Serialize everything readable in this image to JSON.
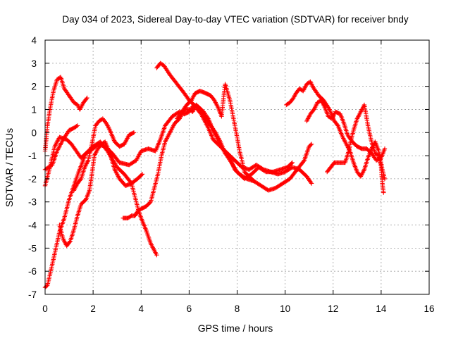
{
  "chart_data": {
    "type": "scatter",
    "title": "Day 034 of 2023, Sidereal Day-to-day VTEC variation (SDTVAR) for receiver bndy",
    "xlabel": "GPS time / hours",
    "ylabel": "SDTVAR / TECUs",
    "xlim": [
      0,
      16
    ],
    "ylim": [
      -7,
      4
    ],
    "xticks": [
      0,
      2,
      4,
      6,
      8,
      10,
      12,
      14,
      16
    ],
    "yticks": [
      -7,
      -6,
      -5,
      -4,
      -3,
      -2,
      -1,
      0,
      1,
      2,
      3,
      4
    ],
    "grid": true,
    "marker": "+",
    "color": "#ff0000",
    "series": [
      {
        "points": [
          [
            0.0,
            -6.7
          ],
          [
            0.1,
            -6.6
          ],
          [
            0.3,
            -5.7
          ],
          [
            0.45,
            -5.0
          ],
          [
            0.6,
            -4.3
          ],
          [
            0.8,
            -3.7
          ],
          [
            1.0,
            -2.9
          ],
          [
            1.2,
            -2.3
          ],
          [
            1.4,
            -1.7
          ],
          [
            1.55,
            -1.3
          ],
          [
            1.7,
            -0.9
          ],
          [
            2.0,
            -0.6
          ],
          [
            2.3,
            -0.4
          ],
          [
            2.6,
            -0.8
          ],
          [
            3.0,
            -1.5
          ],
          [
            3.3,
            -1.8
          ],
          [
            3.6,
            -2.2
          ],
          [
            3.9,
            -3.4
          ],
          [
            4.0,
            -3.7
          ],
          [
            4.2,
            -4.2
          ],
          [
            4.4,
            -4.8
          ],
          [
            4.65,
            -5.3
          ]
        ]
      },
      {
        "points": [
          [
            0.0,
            -0.8
          ],
          [
            0.1,
            0.3
          ],
          [
            0.2,
            1.0
          ],
          [
            0.35,
            1.8
          ],
          [
            0.5,
            2.3
          ],
          [
            0.65,
            2.4
          ],
          [
            0.8,
            1.9
          ],
          [
            1.0,
            1.6
          ],
          [
            1.2,
            1.3
          ],
          [
            1.35,
            1.2
          ],
          [
            1.45,
            1.0
          ],
          [
            1.6,
            1.3
          ],
          [
            1.75,
            1.5
          ]
        ]
      },
      {
        "points": [
          [
            0.0,
            -1.6
          ],
          [
            0.3,
            -1.4
          ],
          [
            0.5,
            -0.8
          ],
          [
            0.75,
            -0.3
          ],
          [
            1.0,
            0.1
          ],
          [
            1.2,
            0.2
          ],
          [
            1.35,
            0.3
          ]
        ]
      },
      {
        "points": [
          [
            0.0,
            -2.3
          ],
          [
            0.2,
            -1.5
          ],
          [
            0.4,
            -0.6
          ],
          [
            0.6,
            -0.2
          ],
          [
            0.9,
            -0.3
          ],
          [
            1.1,
            -0.5
          ],
          [
            1.3,
            -0.8
          ],
          [
            1.5,
            -1.1
          ],
          [
            1.7,
            -0.9
          ],
          [
            2.0,
            -0.7
          ],
          [
            2.2,
            -0.5
          ],
          [
            2.5,
            -0.6
          ],
          [
            2.8,
            -0.9
          ],
          [
            3.1,
            -1.3
          ],
          [
            3.5,
            -1.4
          ],
          [
            3.8,
            -1.2
          ],
          [
            4.0,
            -0.8
          ],
          [
            4.3,
            -0.7
          ],
          [
            4.6,
            -0.8
          ],
          [
            4.8,
            -0.3
          ],
          [
            5.0,
            0.3
          ],
          [
            5.3,
            0.7
          ],
          [
            5.6,
            0.9
          ],
          [
            5.8,
            0.8
          ],
          [
            6.0,
            0.9
          ],
          [
            6.2,
            1.2
          ],
          [
            6.5,
            0.8
          ],
          [
            6.8,
            0.2
          ],
          [
            7.0,
            -0.3
          ],
          [
            7.3,
            -0.6
          ],
          [
            7.6,
            -0.9
          ],
          [
            7.9,
            -1.2
          ],
          [
            8.2,
            -1.5
          ],
          [
            8.5,
            -1.6
          ],
          [
            8.8,
            -1.4
          ],
          [
            9.1,
            -1.6
          ],
          [
            9.4,
            -1.7
          ],
          [
            9.7,
            -1.8
          ],
          [
            10.0,
            -1.7
          ],
          [
            10.3,
            -1.5
          ],
          [
            10.6,
            -1.6
          ],
          [
            10.9,
            -1.9
          ],
          [
            11.1,
            -2.2
          ]
        ]
      },
      {
        "points": [
          [
            0.6,
            -4.0
          ],
          [
            0.75,
            -4.6
          ],
          [
            0.9,
            -4.9
          ],
          [
            1.05,
            -4.7
          ],
          [
            1.2,
            -4.2
          ],
          [
            1.35,
            -3.6
          ],
          [
            1.5,
            -3.1
          ],
          [
            1.7,
            -2.9
          ],
          [
            1.85,
            -2.5
          ],
          [
            1.95,
            -1.8
          ],
          [
            2.05,
            -1.0
          ],
          [
            2.2,
            -0.7
          ],
          [
            2.35,
            -0.5
          ],
          [
            2.5,
            -0.4
          ],
          [
            2.7,
            -0.9
          ],
          [
            2.9,
            -1.6
          ],
          [
            3.1,
            -2.0
          ],
          [
            3.35,
            -2.3
          ],
          [
            3.6,
            -2.2
          ],
          [
            3.85,
            -2.0
          ],
          [
            4.05,
            -1.8
          ]
        ]
      },
      {
        "points": [
          [
            1.2,
            -2.5
          ],
          [
            1.35,
            -2.2
          ],
          [
            1.5,
            -2.0
          ],
          [
            1.65,
            -1.5
          ],
          [
            1.8,
            -1.2
          ],
          [
            1.95,
            -0.5
          ],
          [
            2.1,
            0.3
          ],
          [
            2.25,
            0.5
          ],
          [
            2.4,
            0.6
          ],
          [
            2.55,
            0.4
          ],
          [
            2.7,
            0.1
          ],
          [
            2.9,
            -0.4
          ],
          [
            3.1,
            -0.6
          ],
          [
            3.3,
            -0.5
          ],
          [
            3.5,
            -0.1
          ],
          [
            3.7,
            0.0
          ]
        ]
      },
      {
        "points": [
          [
            3.25,
            -3.7
          ],
          [
            3.45,
            -3.7
          ],
          [
            3.6,
            -3.6
          ],
          [
            3.75,
            -3.6
          ],
          [
            3.85,
            -3.4
          ],
          [
            4.0,
            -3.3
          ],
          [
            4.2,
            -3.2
          ],
          [
            4.4,
            -3.0
          ],
          [
            4.55,
            -2.4
          ],
          [
            4.7,
            -1.8
          ],
          [
            4.85,
            -1.0
          ],
          [
            5.0,
            -0.4
          ],
          [
            5.2,
            0.0
          ],
          [
            5.4,
            0.4
          ],
          [
            5.6,
            0.6
          ],
          [
            5.8,
            1.0
          ],
          [
            6.0,
            1.0
          ],
          [
            6.15,
            0.9
          ],
          [
            6.3,
            1.2
          ],
          [
            6.5,
            1.0
          ],
          [
            6.7,
            0.6
          ],
          [
            6.9,
            0.3
          ],
          [
            7.1,
            0.0
          ],
          [
            7.3,
            -0.4
          ],
          [
            7.5,
            -0.9
          ],
          [
            7.7,
            -1.1
          ],
          [
            7.9,
            -1.6
          ],
          [
            8.1,
            -1.8
          ],
          [
            8.4,
            -2.0
          ],
          [
            8.7,
            -2.1
          ],
          [
            9.0,
            -2.3
          ],
          [
            9.3,
            -2.5
          ],
          [
            9.6,
            -2.4
          ],
          [
            9.9,
            -2.2
          ],
          [
            10.2,
            -2.0
          ],
          [
            10.5,
            -1.6
          ],
          [
            10.8,
            -1.2
          ],
          [
            11.0,
            -0.6
          ],
          [
            11.1,
            -0.5
          ]
        ]
      },
      {
        "points": [
          [
            4.65,
            2.8
          ],
          [
            4.8,
            3.0
          ],
          [
            4.95,
            2.9
          ],
          [
            5.2,
            2.5
          ],
          [
            5.5,
            2.1
          ],
          [
            5.8,
            1.7
          ],
          [
            6.0,
            1.4
          ],
          [
            6.2,
            1.2
          ],
          [
            6.4,
            1.1
          ],
          [
            6.6,
            0.9
          ],
          [
            6.8,
            0.6
          ],
          [
            7.0,
            0.1
          ],
          [
            7.2,
            -0.3
          ],
          [
            7.45,
            -0.8
          ],
          [
            7.7,
            -1.2
          ],
          [
            8.0,
            -1.7
          ],
          [
            8.3,
            -2.0
          ],
          [
            8.6,
            -1.8
          ],
          [
            8.9,
            -1.5
          ],
          [
            9.2,
            -1.7
          ],
          [
            9.5,
            -1.7
          ],
          [
            9.8,
            -1.6
          ],
          [
            10.1,
            -1.5
          ],
          [
            10.3,
            -1.3
          ]
        ]
      },
      {
        "points": [
          [
            5.5,
            0.6
          ],
          [
            5.7,
            0.9
          ],
          [
            5.9,
            1.2
          ],
          [
            6.1,
            1.4
          ],
          [
            6.25,
            1.7
          ],
          [
            6.45,
            1.8
          ],
          [
            6.7,
            1.7
          ],
          [
            6.9,
            1.6
          ],
          [
            7.05,
            1.4
          ],
          [
            7.2,
            1.1
          ],
          [
            7.35,
            0.7
          ],
          [
            7.5,
            2.1
          ],
          [
            7.7,
            1.4
          ],
          [
            7.85,
            0.6
          ],
          [
            8.0,
            -0.2
          ],
          [
            8.1,
            -0.8
          ],
          [
            8.2,
            -1.2
          ],
          [
            8.3,
            -1.7
          ],
          [
            8.5,
            -1.9
          ],
          [
            8.7,
            -2.1
          ]
        ]
      },
      {
        "points": [
          [
            10.05,
            1.2
          ],
          [
            10.2,
            1.3
          ],
          [
            10.35,
            1.5
          ],
          [
            10.45,
            1.7
          ],
          [
            10.6,
            1.9
          ],
          [
            10.75,
            1.8
          ],
          [
            10.9,
            2.1
          ],
          [
            11.05,
            2.2
          ],
          [
            11.2,
            1.9
          ],
          [
            11.4,
            1.6
          ],
          [
            11.6,
            1.4
          ],
          [
            11.85,
            1.0
          ],
          [
            12.05,
            0.5
          ],
          [
            12.2,
            0.3
          ],
          [
            12.4,
            -0.2
          ],
          [
            12.55,
            -0.5
          ],
          [
            12.7,
            -0.8
          ],
          [
            12.85,
            -1.3
          ],
          [
            13.0,
            -1.7
          ],
          [
            13.15,
            -1.9
          ],
          [
            13.3,
            -1.6
          ],
          [
            13.45,
            -1.1
          ],
          [
            13.6,
            -0.7
          ],
          [
            13.75,
            -0.4
          ],
          [
            13.9,
            -0.8
          ],
          [
            14.05,
            -1.6
          ],
          [
            14.15,
            -2.0
          ]
        ]
      },
      {
        "points": [
          [
            10.9,
            0.5
          ],
          [
            11.05,
            0.8
          ],
          [
            11.2,
            1.0
          ],
          [
            11.35,
            1.3
          ],
          [
            11.5,
            1.4
          ],
          [
            11.65,
            1.1
          ],
          [
            11.8,
            0.7
          ],
          [
            11.95,
            0.6
          ],
          [
            12.1,
            0.9
          ],
          [
            12.3,
            0.8
          ],
          [
            12.45,
            0.4
          ],
          [
            12.6,
            -0.1
          ],
          [
            12.8,
            -0.4
          ],
          [
            13.0,
            -0.6
          ],
          [
            13.2,
            -0.7
          ],
          [
            13.4,
            -0.7
          ],
          [
            13.6,
            -0.9
          ],
          [
            13.8,
            -1.2
          ],
          [
            14.0,
            -1.1
          ],
          [
            14.15,
            -0.7
          ]
        ]
      },
      {
        "points": [
          [
            11.75,
            -1.7
          ],
          [
            11.9,
            -1.5
          ],
          [
            12.05,
            -1.3
          ],
          [
            12.2,
            -1.3
          ],
          [
            12.35,
            -1.3
          ],
          [
            12.5,
            -1.3
          ],
          [
            12.65,
            -0.8
          ],
          [
            12.75,
            -0.3
          ],
          [
            12.85,
            0.1
          ],
          [
            13.0,
            0.6
          ],
          [
            13.15,
            0.9
          ],
          [
            13.3,
            1.2
          ],
          [
            13.45,
            0.3
          ],
          [
            13.6,
            -0.4
          ],
          [
            13.75,
            -0.9
          ],
          [
            13.9,
            -1.0
          ],
          [
            14.0,
            -1.5
          ],
          [
            14.05,
            -2.2
          ],
          [
            14.1,
            -2.6
          ]
        ]
      }
    ]
  }
}
